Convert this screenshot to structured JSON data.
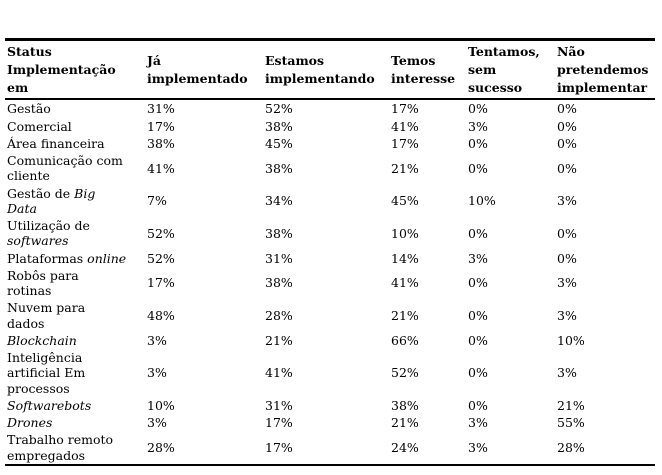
{
  "page": {
    "background_color": "#ffffff",
    "text_color": "#000000",
    "rule_color": "#000000"
  },
  "table": {
    "columns": [
      {
        "label": "Status Implementação em",
        "display": "Status\nImplementação\nem"
      },
      {
        "label": "Já implementado",
        "display": "Já\nimplementado"
      },
      {
        "label": "Estamos implementando",
        "display": "Estamos\nimplementando"
      },
      {
        "label": "Temos interesse",
        "display": "Temos\ninteresse"
      },
      {
        "label": "Tentamos, sem sucesso",
        "display": "Tentamos,\nsem\nsucesso"
      },
      {
        "label": "Não pretendemos implementar",
        "display": "Não\npretendemos\nimplementar"
      }
    ],
    "rows": [
      {
        "label": "Gestão",
        "parts": [
          {
            "text": "Gestão",
            "italic": false
          }
        ],
        "values": [
          "31%",
          "52%",
          "17%",
          "0%",
          "0%"
        ]
      },
      {
        "label": "Comercial",
        "parts": [
          {
            "text": "Comercial",
            "italic": false
          }
        ],
        "values": [
          "17%",
          "38%",
          "41%",
          "3%",
          "0%"
        ]
      },
      {
        "label": "Área financeira",
        "parts": [
          {
            "text": "Área financeira",
            "italic": false
          }
        ],
        "values": [
          "38%",
          "45%",
          "17%",
          "0%",
          "0%"
        ]
      },
      {
        "label": "Comunicação com cliente",
        "parts": [
          {
            "text": "Comunicação com\ncliente",
            "italic": false
          }
        ],
        "values": [
          "41%",
          "38%",
          "21%",
          "0%",
          "0%"
        ]
      },
      {
        "label": "Gestão de Big Data",
        "parts": [
          {
            "text": "Gestão de ",
            "italic": false
          },
          {
            "text": "Big\nData",
            "italic": true
          }
        ],
        "values": [
          "7%",
          "34%",
          "45%",
          "10%",
          "3%"
        ]
      },
      {
        "label": "Utilização de softwares",
        "parts": [
          {
            "text": "Utilização de\n",
            "italic": false
          },
          {
            "text": "softwares",
            "italic": true
          }
        ],
        "values": [
          "52%",
          "38%",
          "10%",
          "0%",
          "0%"
        ]
      },
      {
        "label": "Plataformas online",
        "parts": [
          {
            "text": "Plataformas ",
            "italic": false
          },
          {
            "text": "online",
            "italic": true
          }
        ],
        "values": [
          "52%",
          "31%",
          "14%",
          "3%",
          "0%"
        ]
      },
      {
        "label": "Robôs para rotinas",
        "parts": [
          {
            "text": "Robôs para\nrotinas",
            "italic": false
          }
        ],
        "values": [
          "17%",
          "38%",
          "41%",
          "0%",
          "3%"
        ]
      },
      {
        "label": "Nuvem para dados",
        "parts": [
          {
            "text": "Nuvem para\ndados",
            "italic": false
          }
        ],
        "values": [
          "48%",
          "28%",
          "21%",
          "0%",
          "3%"
        ]
      },
      {
        "label": "Blockchain",
        "parts": [
          {
            "text": "Blockchain",
            "italic": true
          }
        ],
        "values": [
          "3%",
          "21%",
          "66%",
          "0%",
          "10%"
        ]
      },
      {
        "label": "Inteligência artificial Em processos",
        "parts": [
          {
            "text": "Inteligência\nartificial Em\nprocessos",
            "italic": false
          }
        ],
        "values": [
          "3%",
          "41%",
          "52%",
          "0%",
          "3%"
        ]
      },
      {
        "label": "Softwarebots",
        "parts": [
          {
            "text": "Softwarebots",
            "italic": true
          }
        ],
        "values": [
          "10%",
          "31%",
          "38%",
          "0%",
          "21%"
        ]
      },
      {
        "label": "Drones",
        "parts": [
          {
            "text": "Drones",
            "italic": true
          }
        ],
        "values": [
          "3%",
          "17%",
          "21%",
          "3%",
          "55%"
        ]
      },
      {
        "label": "Trabalho remoto empregados",
        "parts": [
          {
            "text": "Trabalho remoto\nempregados",
            "italic": false
          }
        ],
        "values": [
          "28%",
          "17%",
          "24%",
          "3%",
          "28%"
        ]
      }
    ]
  }
}
